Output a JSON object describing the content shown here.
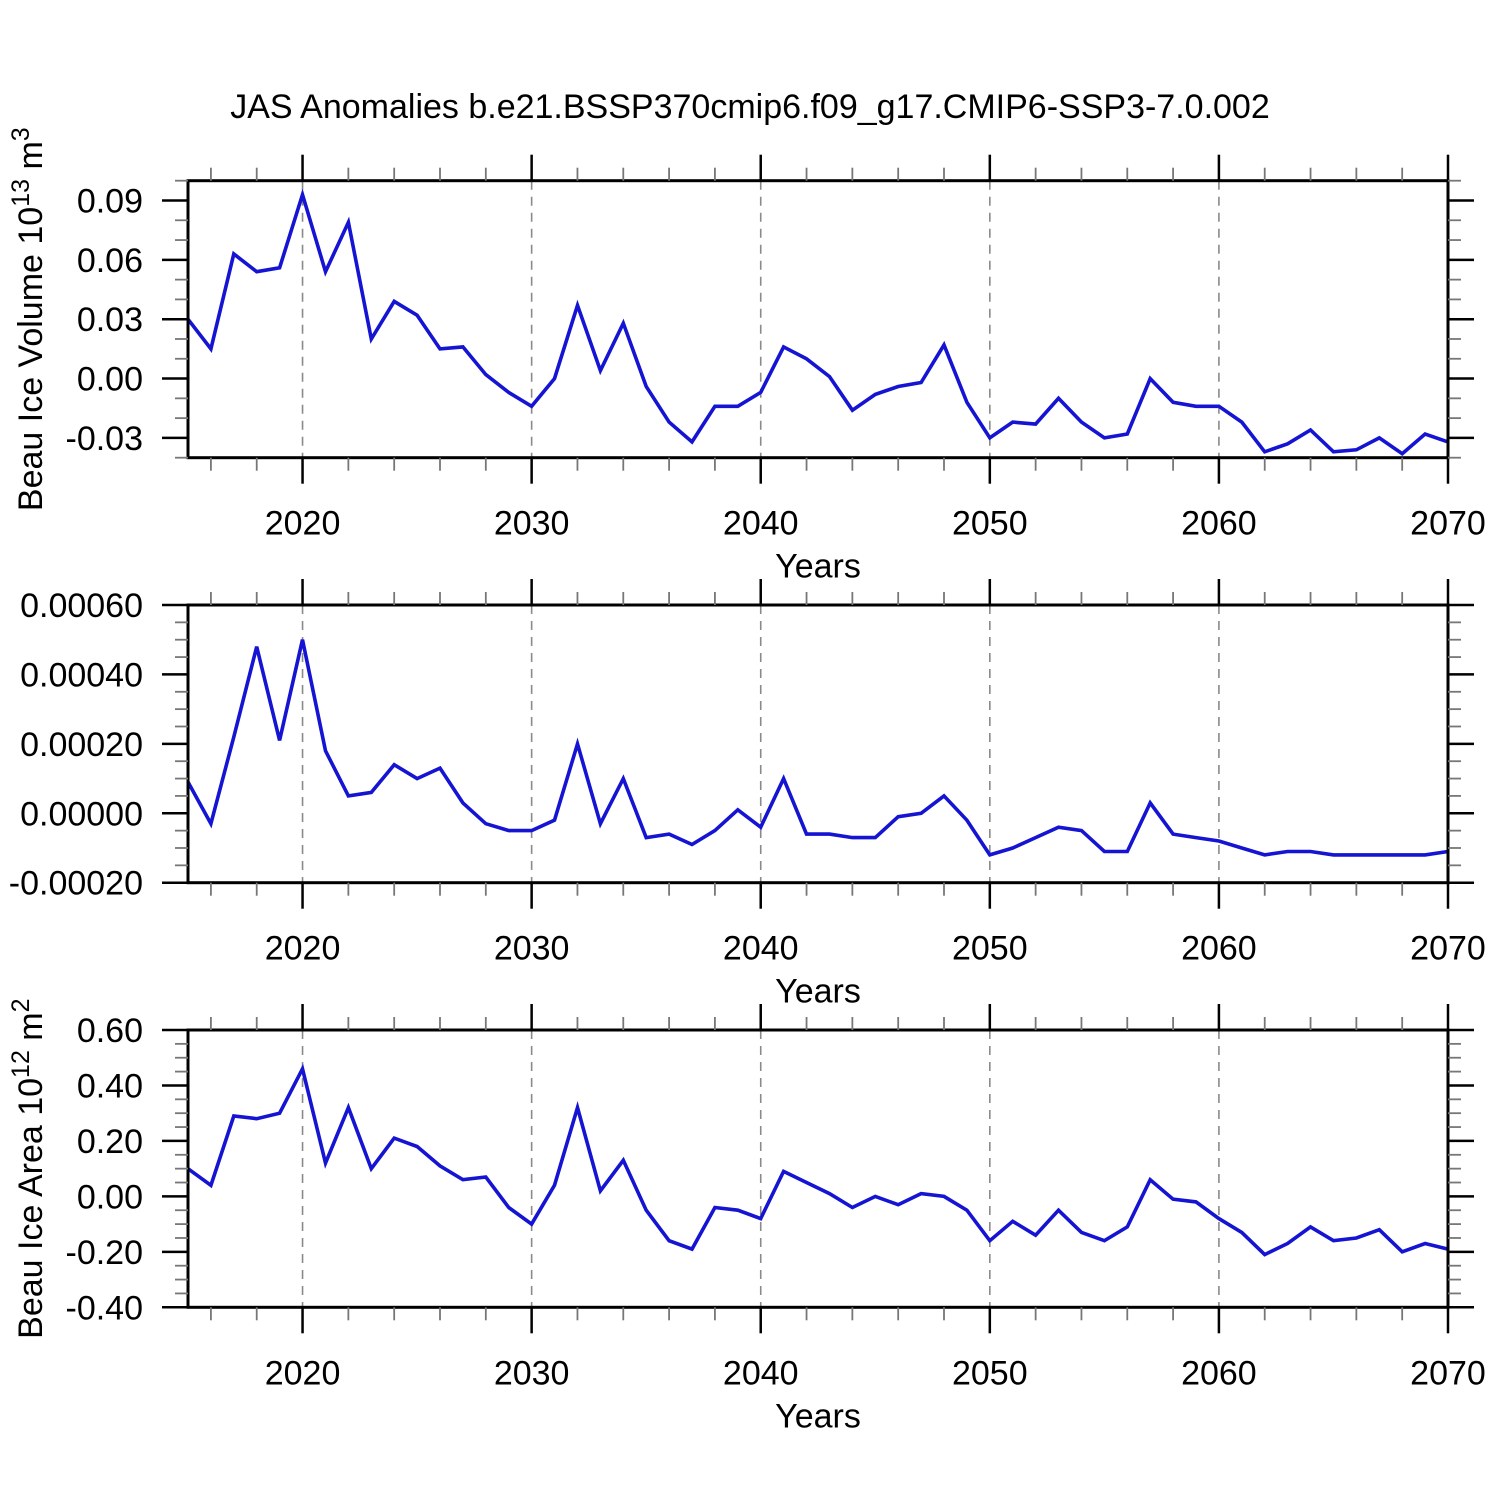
{
  "title": "JAS Anomalies b.e21.BSSP370cmip6.f09_g17.CMIP6-SSP3-7.0.002",
  "style": {
    "line_color": "#1414d2",
    "grid_color": "#8a8a8a",
    "axis_color": "#000000",
    "minor_tick_color": "#777777"
  },
  "x_axis": {
    "label": "Years",
    "min": 2015,
    "max": 2070,
    "major_ticks": [
      {
        "v": 2020,
        "label": "2020"
      },
      {
        "v": 2030,
        "label": "2030"
      },
      {
        "v": 2040,
        "label": "2040"
      },
      {
        "v": 2050,
        "label": "2050"
      },
      {
        "v": 2060,
        "label": "2060"
      },
      {
        "v": 2070,
        "label": "2070"
      }
    ],
    "minor_every": 2,
    "gridlines_at": [
      2020,
      2030,
      2040,
      2050,
      2060
    ]
  },
  "years": [
    2015,
    2016,
    2017,
    2018,
    2019,
    2020,
    2021,
    2022,
    2023,
    2024,
    2025,
    2026,
    2027,
    2028,
    2029,
    2030,
    2031,
    2032,
    2033,
    2034,
    2035,
    2036,
    2037,
    2038,
    2039,
    2040,
    2041,
    2042,
    2043,
    2044,
    2045,
    2046,
    2047,
    2048,
    2049,
    2050,
    2051,
    2052,
    2053,
    2054,
    2055,
    2056,
    2057,
    2058,
    2059,
    2060,
    2061,
    2062,
    2063,
    2064,
    2065,
    2066,
    2067,
    2068,
    2069,
    2070
  ],
  "chart_data": [
    {
      "type": "line",
      "name": "beau-ice-volume",
      "ylabel_text": "Beau Ice Volume 10^13 m^3",
      "ylabel_parts": [
        {
          "text": "Beau Ice Volume 10"
        },
        {
          "sup": "13"
        },
        {
          "text": " m"
        },
        {
          "sup": "3"
        }
      ],
      "ylim": [
        -0.04,
        0.1
      ],
      "y_major_ticks": [
        {
          "v": 0.09,
          "label": "0.09"
        },
        {
          "v": 0.06,
          "label": "0.06"
        },
        {
          "v": 0.03,
          "label": "0.03"
        },
        {
          "v": 0.0,
          "label": "0.00"
        },
        {
          "v": -0.03,
          "label": "-0.03"
        }
      ],
      "y_minor_step": 0.01,
      "values": [
        0.03,
        0.015,
        0.063,
        0.054,
        0.056,
        0.093,
        0.054,
        0.079,
        0.02,
        0.039,
        0.032,
        0.015,
        0.016,
        0.002,
        -0.007,
        -0.014,
        0.0,
        0.037,
        0.004,
        0.028,
        -0.004,
        -0.022,
        -0.032,
        -0.014,
        -0.014,
        -0.007,
        0.016,
        0.01,
        0.001,
        -0.016,
        -0.008,
        -0.004,
        -0.002,
        0.017,
        -0.012,
        -0.03,
        -0.022,
        -0.023,
        -0.01,
        -0.022,
        -0.03,
        -0.028,
        0.0,
        -0.012,
        -0.014,
        -0.014,
        -0.022,
        -0.037,
        -0.033,
        -0.026,
        -0.037,
        -0.036,
        -0.03,
        -0.038,
        -0.028,
        -0.032
      ]
    },
    {
      "type": "line",
      "name": "beau-ice-middle",
      "ylabel_text": "",
      "ylabel_parts": [],
      "ylim": [
        -0.0002,
        0.0006
      ],
      "y_major_ticks": [
        {
          "v": 0.0006,
          "label": "0.00060"
        },
        {
          "v": 0.0004,
          "label": "0.00040"
        },
        {
          "v": 0.0002,
          "label": "0.00020"
        },
        {
          "v": 0.0,
          "label": "0.00000"
        },
        {
          "v": -0.0002,
          "label": "-0.00020"
        }
      ],
      "y_minor_step": 5e-05,
      "values": [
        9e-05,
        -3e-05,
        0.00022,
        0.00048,
        0.00021,
        0.0005,
        0.00018,
        5e-05,
        6e-05,
        0.00014,
        0.0001,
        0.00013,
        3e-05,
        -3e-05,
        -5e-05,
        -5e-05,
        -2e-05,
        0.0002,
        -3e-05,
        0.0001,
        -7e-05,
        -6e-05,
        -9e-05,
        -5e-05,
        1e-05,
        -4e-05,
        0.0001,
        -6e-05,
        -6e-05,
        -7e-05,
        -7e-05,
        -1e-05,
        0.0,
        5e-05,
        -2e-05,
        -0.00012,
        -0.0001,
        -7e-05,
        -4e-05,
        -5e-05,
        -0.00011,
        -0.00011,
        3e-05,
        -6e-05,
        -7e-05,
        -8e-05,
        -0.0001,
        -0.00012,
        -0.00011,
        -0.00011,
        -0.00012,
        -0.00012,
        -0.00012,
        -0.00012,
        -0.00012,
        -0.00011
      ]
    },
    {
      "type": "line",
      "name": "beau-ice-area",
      "ylabel_text": "Beau Ice Area 10^12 m^2",
      "ylabel_parts": [
        {
          "text": "Beau Ice Area 10"
        },
        {
          "sup": "12"
        },
        {
          "text": " m"
        },
        {
          "sup": "2"
        }
      ],
      "ylim": [
        -0.4,
        0.6
      ],
      "y_major_ticks": [
        {
          "v": 0.6,
          "label": "0.60"
        },
        {
          "v": 0.4,
          "label": "0.40"
        },
        {
          "v": 0.2,
          "label": "0.20"
        },
        {
          "v": 0.0,
          "label": "0.00"
        },
        {
          "v": -0.2,
          "label": "-0.20"
        },
        {
          "v": -0.4,
          "label": "-0.40"
        }
      ],
      "y_minor_step": 0.05,
      "values": [
        0.1,
        0.04,
        0.29,
        0.28,
        0.3,
        0.46,
        0.12,
        0.32,
        0.1,
        0.21,
        0.18,
        0.11,
        0.06,
        0.07,
        -0.04,
        -0.1,
        0.04,
        0.32,
        0.02,
        0.13,
        -0.05,
        -0.16,
        -0.19,
        -0.04,
        -0.05,
        -0.08,
        0.09,
        0.05,
        0.01,
        -0.04,
        0.0,
        -0.03,
        0.01,
        0.0,
        -0.05,
        -0.16,
        -0.09,
        -0.14,
        -0.05,
        -0.13,
        -0.16,
        -0.11,
        0.06,
        -0.01,
        -0.02,
        -0.08,
        -0.13,
        -0.21,
        -0.17,
        -0.11,
        -0.16,
        -0.15,
        -0.12,
        -0.2,
        -0.17,
        -0.19
      ]
    }
  ]
}
